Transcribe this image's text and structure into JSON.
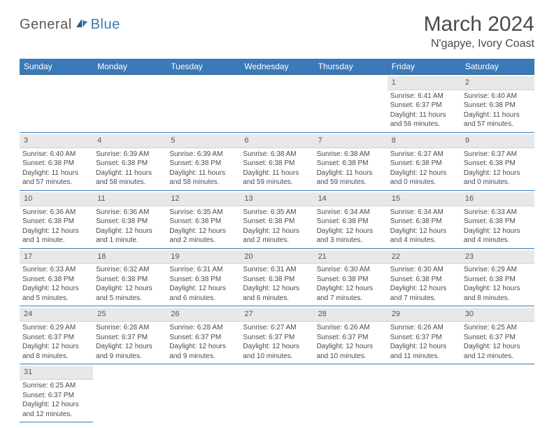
{
  "logo": {
    "part1": "General",
    "part2": "Blue"
  },
  "title": "March 2024",
  "location": "N'gapye, Ivory Coast",
  "colors": {
    "header_bg": "#3a7ab8",
    "header_text": "#ffffff",
    "daynum_bg": "#e8e8e8",
    "row_border": "#3a7ab8",
    "text": "#4a4a4a",
    "logo_blue": "#3a7ab8"
  },
  "weekdays": [
    "Sunday",
    "Monday",
    "Tuesday",
    "Wednesday",
    "Thursday",
    "Friday",
    "Saturday"
  ],
  "weeks": [
    [
      null,
      null,
      null,
      null,
      null,
      {
        "day": "1",
        "sunrise": "Sunrise: 6:41 AM",
        "sunset": "Sunset: 6:37 PM",
        "daylight": "Daylight: 11 hours and 56 minutes."
      },
      {
        "day": "2",
        "sunrise": "Sunrise: 6:40 AM",
        "sunset": "Sunset: 6:38 PM",
        "daylight": "Daylight: 11 hours and 57 minutes."
      }
    ],
    [
      {
        "day": "3",
        "sunrise": "Sunrise: 6:40 AM",
        "sunset": "Sunset: 6:38 PM",
        "daylight": "Daylight: 11 hours and 57 minutes."
      },
      {
        "day": "4",
        "sunrise": "Sunrise: 6:39 AM",
        "sunset": "Sunset: 6:38 PM",
        "daylight": "Daylight: 11 hours and 58 minutes."
      },
      {
        "day": "5",
        "sunrise": "Sunrise: 6:39 AM",
        "sunset": "Sunset: 6:38 PM",
        "daylight": "Daylight: 11 hours and 58 minutes."
      },
      {
        "day": "6",
        "sunrise": "Sunrise: 6:38 AM",
        "sunset": "Sunset: 6:38 PM",
        "daylight": "Daylight: 11 hours and 59 minutes."
      },
      {
        "day": "7",
        "sunrise": "Sunrise: 6:38 AM",
        "sunset": "Sunset: 6:38 PM",
        "daylight": "Daylight: 11 hours and 59 minutes."
      },
      {
        "day": "8",
        "sunrise": "Sunrise: 6:37 AM",
        "sunset": "Sunset: 6:38 PM",
        "daylight": "Daylight: 12 hours and 0 minutes."
      },
      {
        "day": "9",
        "sunrise": "Sunrise: 6:37 AM",
        "sunset": "Sunset: 6:38 PM",
        "daylight": "Daylight: 12 hours and 0 minutes."
      }
    ],
    [
      {
        "day": "10",
        "sunrise": "Sunrise: 6:36 AM",
        "sunset": "Sunset: 6:38 PM",
        "daylight": "Daylight: 12 hours and 1 minute."
      },
      {
        "day": "11",
        "sunrise": "Sunrise: 6:36 AM",
        "sunset": "Sunset: 6:38 PM",
        "daylight": "Daylight: 12 hours and 1 minute."
      },
      {
        "day": "12",
        "sunrise": "Sunrise: 6:35 AM",
        "sunset": "Sunset: 6:38 PM",
        "daylight": "Daylight: 12 hours and 2 minutes."
      },
      {
        "day": "13",
        "sunrise": "Sunrise: 6:35 AM",
        "sunset": "Sunset: 6:38 PM",
        "daylight": "Daylight: 12 hours and 2 minutes."
      },
      {
        "day": "14",
        "sunrise": "Sunrise: 6:34 AM",
        "sunset": "Sunset: 6:38 PM",
        "daylight": "Daylight: 12 hours and 3 minutes."
      },
      {
        "day": "15",
        "sunrise": "Sunrise: 6:34 AM",
        "sunset": "Sunset: 6:38 PM",
        "daylight": "Daylight: 12 hours and 4 minutes."
      },
      {
        "day": "16",
        "sunrise": "Sunrise: 6:33 AM",
        "sunset": "Sunset: 6:38 PM",
        "daylight": "Daylight: 12 hours and 4 minutes."
      }
    ],
    [
      {
        "day": "17",
        "sunrise": "Sunrise: 6:33 AM",
        "sunset": "Sunset: 6:38 PM",
        "daylight": "Daylight: 12 hours and 5 minutes."
      },
      {
        "day": "18",
        "sunrise": "Sunrise: 6:32 AM",
        "sunset": "Sunset: 6:38 PM",
        "daylight": "Daylight: 12 hours and 5 minutes."
      },
      {
        "day": "19",
        "sunrise": "Sunrise: 6:31 AM",
        "sunset": "Sunset: 6:38 PM",
        "daylight": "Daylight: 12 hours and 6 minutes."
      },
      {
        "day": "20",
        "sunrise": "Sunrise: 6:31 AM",
        "sunset": "Sunset: 6:38 PM",
        "daylight": "Daylight: 12 hours and 6 minutes."
      },
      {
        "day": "21",
        "sunrise": "Sunrise: 6:30 AM",
        "sunset": "Sunset: 6:38 PM",
        "daylight": "Daylight: 12 hours and 7 minutes."
      },
      {
        "day": "22",
        "sunrise": "Sunrise: 6:30 AM",
        "sunset": "Sunset: 6:38 PM",
        "daylight": "Daylight: 12 hours and 7 minutes."
      },
      {
        "day": "23",
        "sunrise": "Sunrise: 6:29 AM",
        "sunset": "Sunset: 6:38 PM",
        "daylight": "Daylight: 12 hours and 8 minutes."
      }
    ],
    [
      {
        "day": "24",
        "sunrise": "Sunrise: 6:29 AM",
        "sunset": "Sunset: 6:37 PM",
        "daylight": "Daylight: 12 hours and 8 minutes."
      },
      {
        "day": "25",
        "sunrise": "Sunrise: 6:28 AM",
        "sunset": "Sunset: 6:37 PM",
        "daylight": "Daylight: 12 hours and 9 minutes."
      },
      {
        "day": "26",
        "sunrise": "Sunrise: 6:28 AM",
        "sunset": "Sunset: 6:37 PM",
        "daylight": "Daylight: 12 hours and 9 minutes."
      },
      {
        "day": "27",
        "sunrise": "Sunrise: 6:27 AM",
        "sunset": "Sunset: 6:37 PM",
        "daylight": "Daylight: 12 hours and 10 minutes."
      },
      {
        "day": "28",
        "sunrise": "Sunrise: 6:26 AM",
        "sunset": "Sunset: 6:37 PM",
        "daylight": "Daylight: 12 hours and 10 minutes."
      },
      {
        "day": "29",
        "sunrise": "Sunrise: 6:26 AM",
        "sunset": "Sunset: 6:37 PM",
        "daylight": "Daylight: 12 hours and 11 minutes."
      },
      {
        "day": "30",
        "sunrise": "Sunrise: 6:25 AM",
        "sunset": "Sunset: 6:37 PM",
        "daylight": "Daylight: 12 hours and 12 minutes."
      }
    ],
    [
      {
        "day": "31",
        "sunrise": "Sunrise: 6:25 AM",
        "sunset": "Sunset: 6:37 PM",
        "daylight": "Daylight: 12 hours and 12 minutes."
      },
      null,
      null,
      null,
      null,
      null,
      null
    ]
  ]
}
